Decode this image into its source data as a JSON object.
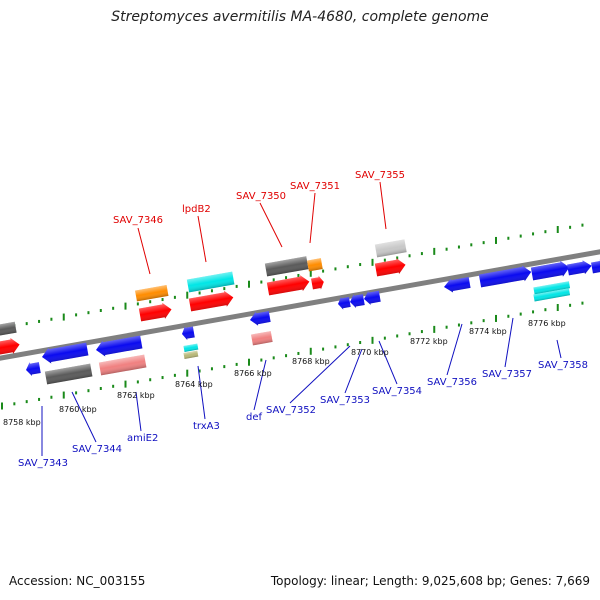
{
  "title": "Streptomyces avermitilis MA-4680, complete genome",
  "accession": "Accession: NC_003155",
  "summary": "Topology: linear; Length: 9,025,608 bp; Genes: 7,669",
  "colors": {
    "backbone": "#808080",
    "tick": "#1a8a1a",
    "label_upper": "#e00000",
    "label_lower": "#1010c0",
    "gene_red": "#ff0000",
    "gene_blue": "#0a0af0",
    "gene_dark_gray": "#5a5a5a",
    "gene_light_gray": "#c8c8c8",
    "gene_orange": "#ff8c00",
    "gene_cyan": "#00e6e6",
    "gene_pink": "#f08080",
    "gene_olive": "#b8b878"
  },
  "kbp_labels": [
    "8758 kbp",
    "8760 kbp",
    "8762 kbp",
    "8764 kbp",
    "8766 kbp",
    "8768 kbp",
    "8770 kbp",
    "8772 kbp",
    "8774 kbp",
    "8776 kbp"
  ],
  "upper_labels": [
    "SAV_7346",
    "lpdB2",
    "SAV_7350",
    "SAV_7351",
    "SAV_7355"
  ],
  "lower_labels": [
    "SAV_7343",
    "SAV_7344",
    "amiE2",
    "trxA3",
    "def",
    "SAV_7352",
    "SAV_7353",
    "SAV_7354",
    "SAV_7356",
    "SAV_7357",
    "SAV_7358"
  ]
}
